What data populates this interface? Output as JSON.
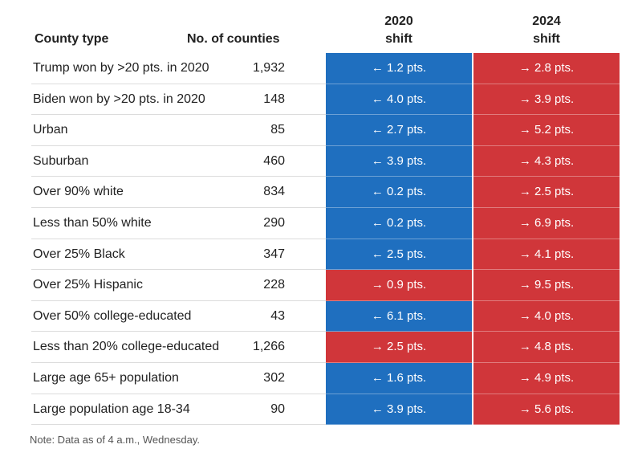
{
  "chart_data": {
    "type": "table",
    "columns": [
      "County type",
      "No. of counties",
      "2020 shift",
      "2024 shift"
    ],
    "header": {
      "county_type": "County type",
      "count": "No. of counties",
      "shift_2020_year": "2020",
      "shift_2020_word": "shift",
      "shift_2024_year": "2024",
      "shift_2024_word": "shift"
    },
    "colors": {
      "left": "#1f6fbf",
      "right": "#d0363a"
    },
    "rows": [
      {
        "county_type": "Trump won by >20 pts. in 2020",
        "count": "1,932",
        "shift_2020": "← 1.2 pts.",
        "dir_2020": "left",
        "shift_2024": "→ 2.8 pts.",
        "dir_2024": "right"
      },
      {
        "county_type": "Biden won by >20 pts. in 2020",
        "count": "148",
        "shift_2020": "← 4.0 pts.",
        "dir_2020": "left",
        "shift_2024": "→ 3.9 pts.",
        "dir_2024": "right"
      },
      {
        "county_type": "Urban",
        "count": "85",
        "shift_2020": "← 2.7 pts.",
        "dir_2020": "left",
        "shift_2024": "→ 5.2 pts.",
        "dir_2024": "right"
      },
      {
        "county_type": "Suburban",
        "count": "460",
        "shift_2020": "← 3.9 pts.",
        "dir_2020": "left",
        "shift_2024": "→ 4.3 pts.",
        "dir_2024": "right"
      },
      {
        "county_type": "Over 90% white",
        "count": "834",
        "shift_2020": "← 0.2 pts.",
        "dir_2020": "left",
        "shift_2024": "→ 2.5 pts.",
        "dir_2024": "right"
      },
      {
        "county_type": "Less than 50% white",
        "count": "290",
        "shift_2020": "← 0.2 pts.",
        "dir_2020": "left",
        "shift_2024": "→ 6.9 pts.",
        "dir_2024": "right"
      },
      {
        "county_type": "Over 25% Black",
        "count": "347",
        "shift_2020": "← 2.5 pts.",
        "dir_2020": "left",
        "shift_2024": "→ 4.1 pts.",
        "dir_2024": "right"
      },
      {
        "county_type": "Over 25% Hispanic",
        "count": "228",
        "shift_2020": "→ 0.9 pts.",
        "dir_2020": "right",
        "shift_2024": "→ 9.5 pts.",
        "dir_2024": "right"
      },
      {
        "county_type": "Over 50% college-educated",
        "count": "43",
        "shift_2020": "← 6.1 pts.",
        "dir_2020": "left",
        "shift_2024": "→ 4.0 pts.",
        "dir_2024": "right"
      },
      {
        "county_type": "Less than 20% college-educated",
        "count": "1,266",
        "shift_2020": "→ 2.5 pts.",
        "dir_2020": "right",
        "shift_2024": "→ 4.8 pts.",
        "dir_2024": "right"
      },
      {
        "county_type": "Large age 65+ population",
        "count": "302",
        "shift_2020": "← 1.6 pts.",
        "dir_2020": "left",
        "shift_2024": "→ 4.9 pts.",
        "dir_2024": "right"
      },
      {
        "county_type": "Large population age 18-34",
        "count": "90",
        "shift_2020": "← 3.9 pts.",
        "dir_2020": "left",
        "shift_2024": "→ 5.6 pts.",
        "dir_2024": "right"
      }
    ],
    "note": "Note: Data as of 4 a.m., Wednesday."
  }
}
